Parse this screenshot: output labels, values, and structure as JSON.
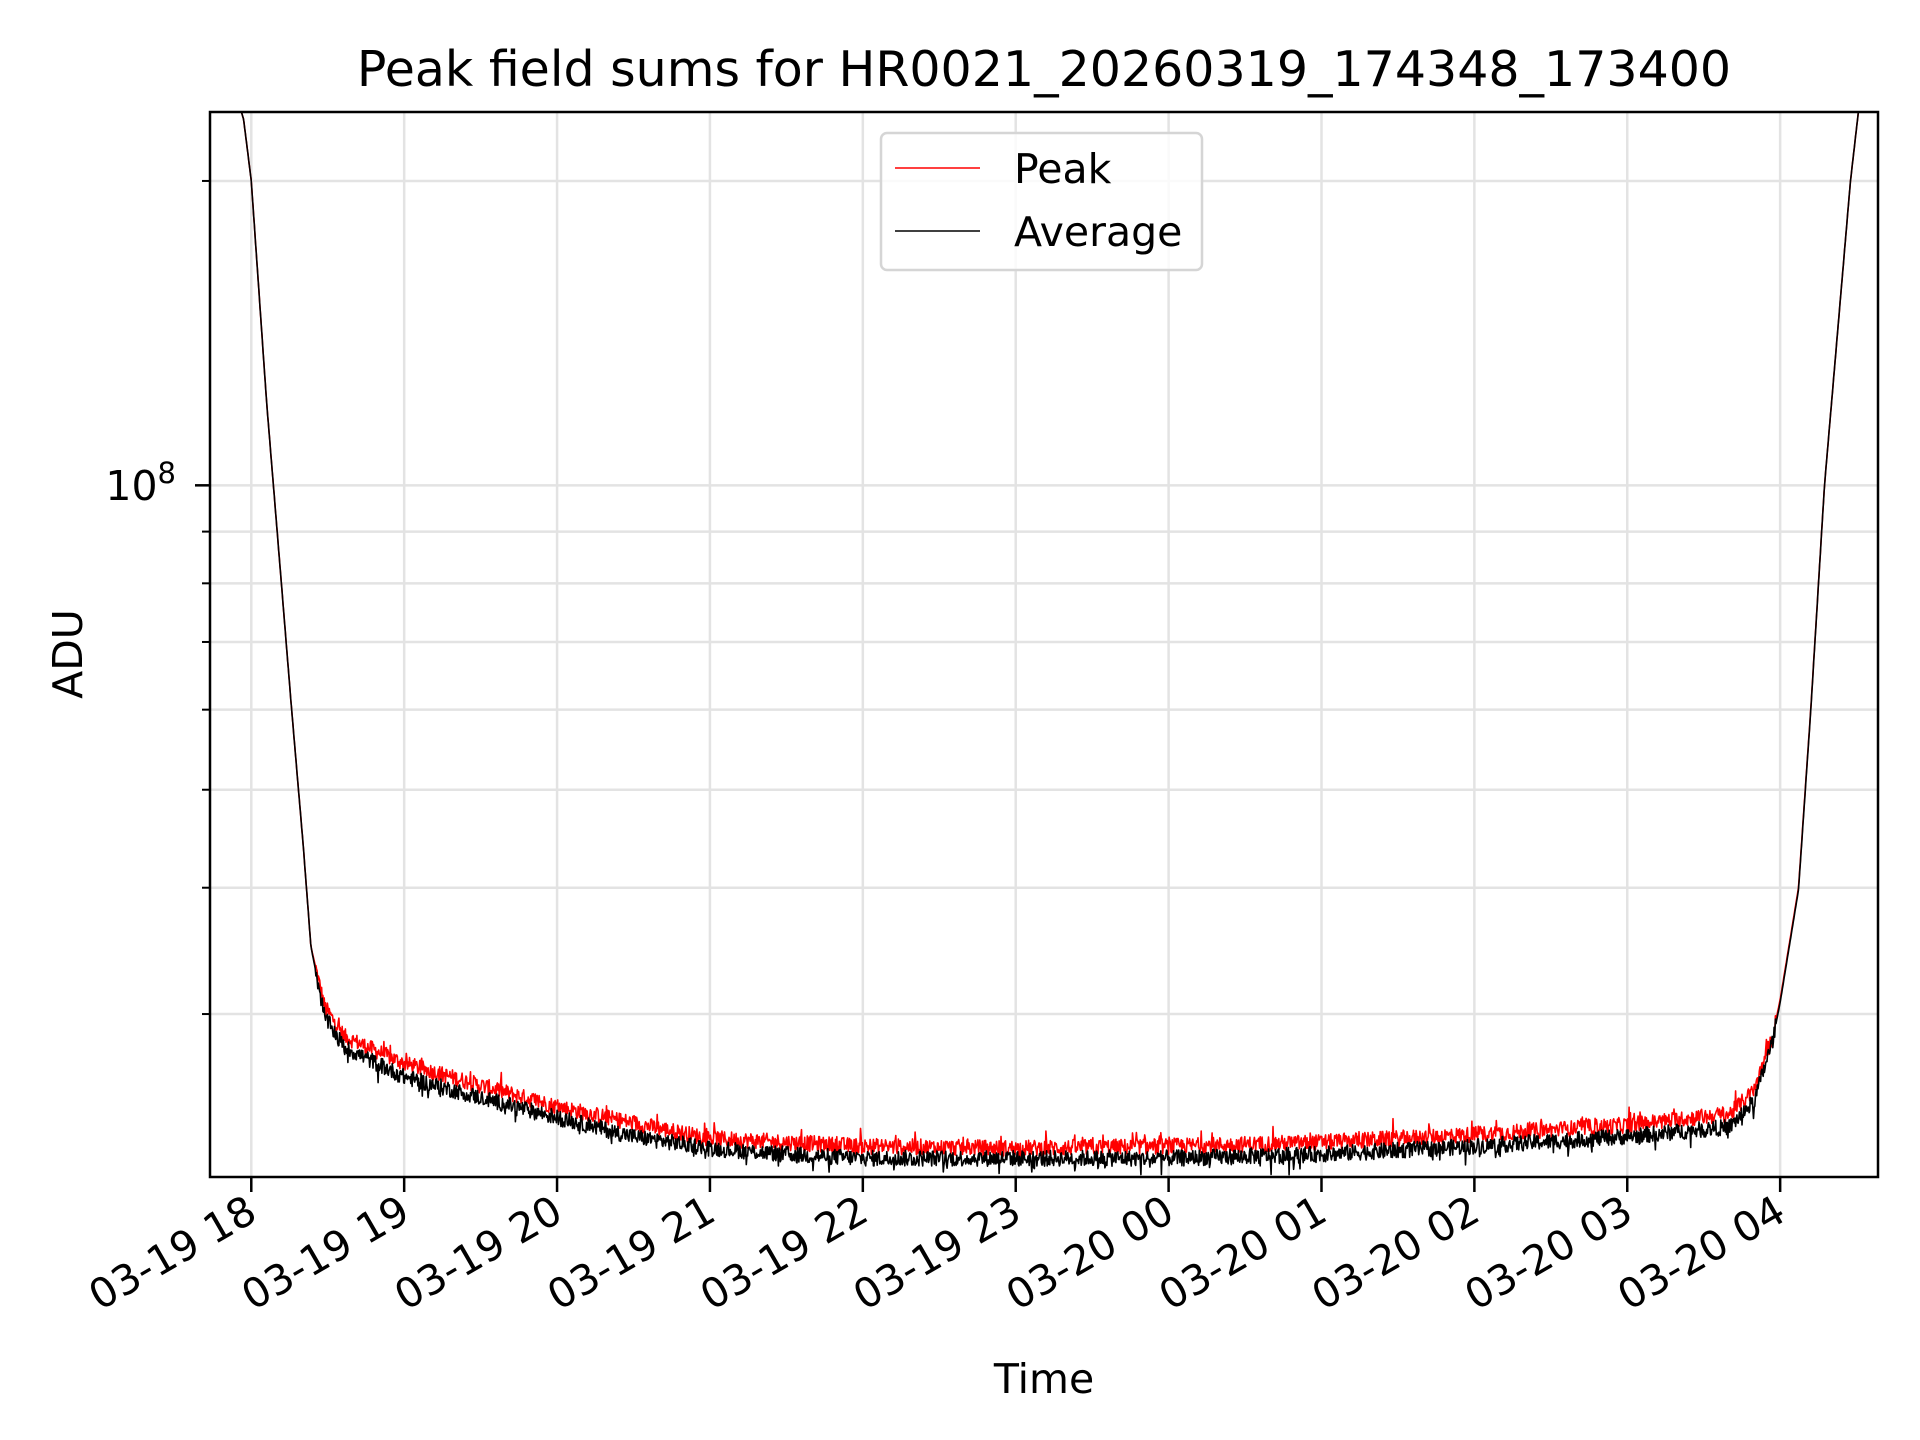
{
  "chart_data": {
    "type": "line",
    "title": "Peak field sums for HR0021_20260319_174348_173400",
    "xlabel": "Time",
    "ylabel": "ADU",
    "yscale": "log",
    "ylim": [
      20700000,
      234000000
    ],
    "xlim_hours_since_0319_0000": [
      17.73,
      28.64
    ],
    "x_unit": "hours since 03-19 00:00",
    "grid": "both",
    "legend_position": "upper center",
    "x_ticks": [
      {
        "value": 18,
        "label": "03-19 18"
      },
      {
        "value": 19,
        "label": "03-19 19"
      },
      {
        "value": 20,
        "label": "03-19 20"
      },
      {
        "value": 21,
        "label": "03-19 21"
      },
      {
        "value": 22,
        "label": "03-19 22"
      },
      {
        "value": 23,
        "label": "03-19 23"
      },
      {
        "value": 24,
        "label": "03-20 00"
      },
      {
        "value": 25,
        "label": "03-20 01"
      },
      {
        "value": 26,
        "label": "03-20 02"
      },
      {
        "value": 27,
        "label": "03-20 03"
      },
      {
        "value": 28,
        "label": "03-20 04"
      }
    ],
    "y_major_ticks": [
      {
        "value": 100000000,
        "label_base": "10",
        "label_exp": "8"
      }
    ],
    "y_minor_ticks": [
      30000000,
      40000000,
      50000000,
      60000000,
      70000000,
      80000000,
      90000000,
      200000000
    ],
    "x": [
      17.73,
      17.88,
      17.95,
      18.0,
      18.1,
      18.18,
      18.26,
      18.34,
      18.39,
      18.48,
      18.61,
      19.0,
      19.5,
      20.0,
      20.5,
      21.0,
      21.5,
      22.0,
      23.0,
      24.0,
      25.0,
      26.0,
      27.0,
      27.67,
      27.83,
      27.95,
      28.0,
      28.12,
      28.2,
      28.29,
      28.46,
      28.52,
      28.64
    ],
    "series": [
      {
        "name": "Peak",
        "color": "#ff0000",
        "values": [
          250000000,
          250000000,
          230000000,
          200000000,
          121000000,
          86000000,
          61000000,
          44000000,
          35000000,
          30500000,
          28500000,
          26800000,
          25500000,
          24300000,
          23400000,
          22600000,
          22400000,
          22200000,
          22100000,
          22200000,
          22400000,
          22800000,
          23300000,
          23900000,
          25200000,
          28500000,
          31000000,
          40000000,
          60000000,
          100000000,
          200000000,
          240000000,
          250000000
        ]
      },
      {
        "name": "Average",
        "color": "#000000",
        "values": [
          250000000,
          250000000,
          230000000,
          200000000,
          121000000,
          86000000,
          61000000,
          44000000,
          35000000,
          29800000,
          27800000,
          26000000,
          24800000,
          23700000,
          22700000,
          22100000,
          21800000,
          21600000,
          21600000,
          21600000,
          21800000,
          22200000,
          22700000,
          23200000,
          24600000,
          28200000,
          30800000,
          39800000,
          59800000,
          100000000,
          200000000,
          240000000,
          250000000
        ]
      }
    ]
  }
}
